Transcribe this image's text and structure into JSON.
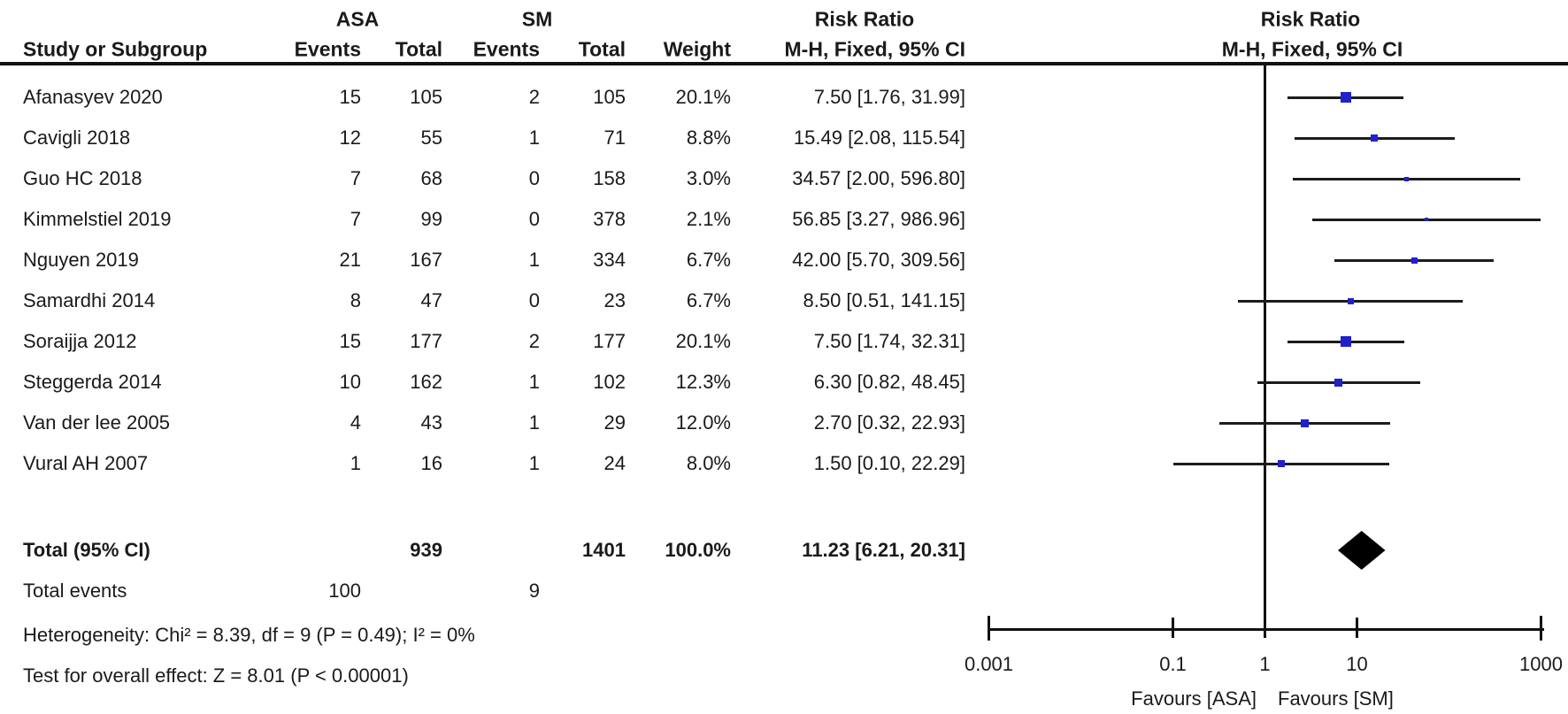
{
  "figure": {
    "effect_header": "Risk Ratio",
    "method_header": "M-H, Fixed, 95% CI",
    "group1": "ASA",
    "group2": "SM",
    "col_study": "Study or Subgroup",
    "col_events": "Events",
    "col_total": "Total",
    "col_weight": "Weight"
  },
  "chart_data": {
    "type": "forest",
    "x_scale": "log10",
    "x_range": [
      0.001,
      1000
    ],
    "x_ticks": [
      "0.001",
      "0.1",
      "1",
      "10",
      "1000"
    ],
    "x_tick_values": [
      0.001,
      0.1,
      1,
      10,
      1000
    ],
    "no_effect_line": 1,
    "marker_color": "#2121cc",
    "diamond_color": "#000000",
    "favours_left": "Favours [ASA]",
    "favours_right": "Favours [SM]",
    "studies": [
      {
        "name": "Afanasyev 2020",
        "asa_events": "15",
        "asa_total": "105",
        "sm_events": "2",
        "sm_total": "105",
        "weight": "20.1%",
        "weight_pct": 20.1,
        "rr": 7.5,
        "ci_low": 1.76,
        "ci_high": 31.99,
        "ci_text": "7.50 [1.76, 31.99]"
      },
      {
        "name": "Cavigli 2018",
        "asa_events": "12",
        "asa_total": "55",
        "sm_events": "1",
        "sm_total": "71",
        "weight": "8.8%",
        "weight_pct": 8.8,
        "rr": 15.49,
        "ci_low": 2.08,
        "ci_high": 115.54,
        "ci_text": "15.49 [2.08, 115.54]"
      },
      {
        "name": "Guo HC 2018",
        "asa_events": "7",
        "asa_total": "68",
        "sm_events": "0",
        "sm_total": "158",
        "weight": "3.0%",
        "weight_pct": 3.0,
        "rr": 34.57,
        "ci_low": 2.0,
        "ci_high": 596.8,
        "ci_text": "34.57 [2.00, 596.80]"
      },
      {
        "name": "Kimmelstiel 2019",
        "asa_events": "7",
        "asa_total": "99",
        "sm_events": "0",
        "sm_total": "378",
        "weight": "2.1%",
        "weight_pct": 2.1,
        "rr": 56.85,
        "ci_low": 3.27,
        "ci_high": 986.96,
        "ci_text": "56.85 [3.27, 986.96]"
      },
      {
        "name": "Nguyen 2019",
        "asa_events": "21",
        "asa_total": "167",
        "sm_events": "1",
        "sm_total": "334",
        "weight": "6.7%",
        "weight_pct": 6.7,
        "rr": 42.0,
        "ci_low": 5.7,
        "ci_high": 309.56,
        "ci_text": "42.00 [5.70, 309.56]"
      },
      {
        "name": "Samardhi 2014",
        "asa_events": "8",
        "asa_total": "47",
        "sm_events": "0",
        "sm_total": "23",
        "weight": "6.7%",
        "weight_pct": 6.7,
        "rr": 8.5,
        "ci_low": 0.51,
        "ci_high": 141.15,
        "ci_text": "8.50 [0.51, 141.15]"
      },
      {
        "name": "Soraijja 2012",
        "asa_events": "15",
        "asa_total": "177",
        "sm_events": "2",
        "sm_total": "177",
        "weight": "20.1%",
        "weight_pct": 20.1,
        "rr": 7.5,
        "ci_low": 1.74,
        "ci_high": 32.31,
        "ci_text": "7.50 [1.74, 32.31]"
      },
      {
        "name": "Steggerda 2014",
        "asa_events": "10",
        "asa_total": "162",
        "sm_events": "1",
        "sm_total": "102",
        "weight": "12.3%",
        "weight_pct": 12.3,
        "rr": 6.3,
        "ci_low": 0.82,
        "ci_high": 48.45,
        "ci_text": "6.30 [0.82, 48.45]"
      },
      {
        "name": "Van der lee 2005",
        "asa_events": "4",
        "asa_total": "43",
        "sm_events": "1",
        "sm_total": "29",
        "weight": "12.0%",
        "weight_pct": 12.0,
        "rr": 2.7,
        "ci_low": 0.32,
        "ci_high": 22.93,
        "ci_text": "2.70 [0.32, 22.93]"
      },
      {
        "name": "Vural AH 2007",
        "asa_events": "1",
        "asa_total": "16",
        "sm_events": "1",
        "sm_total": "24",
        "weight": "8.0%",
        "weight_pct": 8.0,
        "rr": 1.5,
        "ci_low": 0.1,
        "ci_high": 22.29,
        "ci_text": "1.50 [0.10, 22.29]"
      }
    ],
    "total": {
      "label": "Total (95% CI)",
      "asa_total": "939",
      "sm_total": "1401",
      "weight": "100.0%",
      "rr": 11.23,
      "ci_low": 6.21,
      "ci_high": 20.31,
      "ci_text": "11.23 [6.21, 20.31]"
    },
    "total_events": {
      "label": "Total events",
      "asa_events": "100",
      "sm_events": "9"
    },
    "heterogeneity": "Heterogeneity: Chi² = 8.39, df = 9 (P = 0.49); I² = 0%",
    "overall_effect": "Test for overall effect: Z = 8.01 (P < 0.00001)"
  }
}
